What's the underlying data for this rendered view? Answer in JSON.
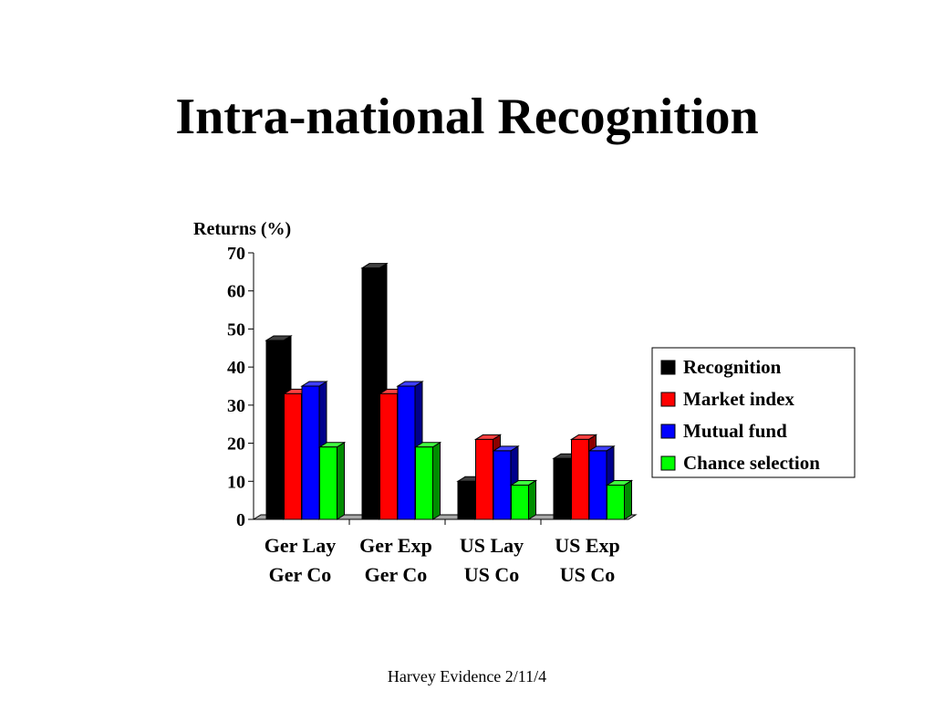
{
  "slide": {
    "title": "Intra-national Recognition",
    "footer": "Harvey Evidence 2/11/4"
  },
  "chart_data": {
    "type": "bar",
    "ylabel": "Returns (%)",
    "ylim": [
      0,
      70
    ],
    "yticks": [
      0,
      10,
      20,
      30,
      40,
      50,
      60,
      70
    ],
    "categories": [
      [
        "Ger Lay",
        "Ger Co"
      ],
      [
        "Ger Exp",
        "Ger Co"
      ],
      [
        "US Lay",
        "US Co"
      ],
      [
        "US Exp",
        "US Co"
      ]
    ],
    "series": [
      {
        "name": "Recognition",
        "color": "#000000",
        "values": [
          47,
          66,
          10,
          16
        ]
      },
      {
        "name": "Market index",
        "color": "#ff0000",
        "values": [
          33,
          33,
          21,
          21
        ]
      },
      {
        "name": "Mutual fund",
        "color": "#0000ff",
        "values": [
          35,
          35,
          18,
          18
        ]
      },
      {
        "name": "Chance selection",
        "color": "#00ff00",
        "values": [
          19,
          19,
          9,
          9
        ]
      }
    ],
    "legend_position": "right",
    "grid": false,
    "style": "3d"
  }
}
